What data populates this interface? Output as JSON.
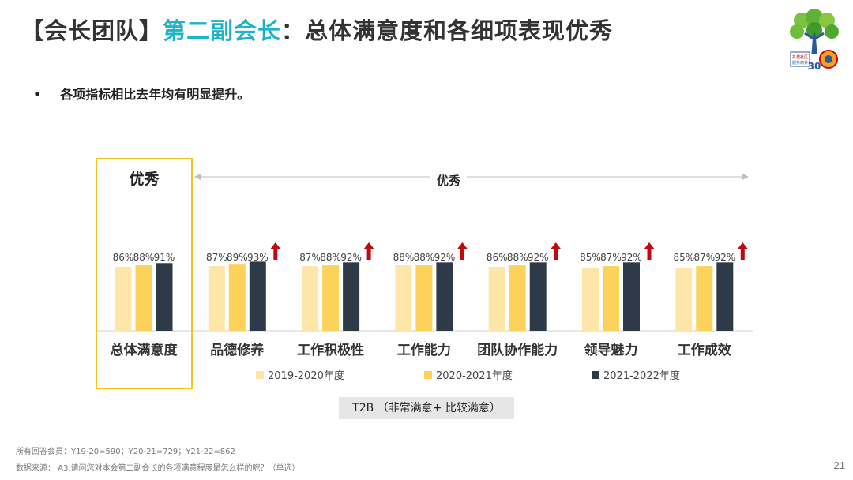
{
  "title": {
    "prefix": "【会长团队】",
    "accent": "第二副会长",
    "rest": "：总体满意度和各细项表现优秀"
  },
  "bullet": "各项指标相比去年均有明显提升。",
  "highlight_label": "优秀",
  "arrow_label": "优秀",
  "t2b_label": "T2B （非常满意+ 比较满意）",
  "footnote_1": "所有回答会员：Y19-20=590；Y20-21=729；Y21-22=862",
  "footnote_2": "数据来源：   A3.请问您对本会第二副会长的各项满意程度是怎么样的呢？（单选）",
  "page_number": "21",
  "colors": {
    "s1": "#fde6a8",
    "s2": "#fcd25a",
    "s3": "#2f3a48",
    "up_arrow": "#c0080e",
    "accent": "#1fb3c8",
    "highlight": "#f5c518"
  },
  "chart_data": {
    "type": "bar",
    "categories": [
      "总体满意度",
      "品德修养",
      "工作积极性",
      "工作能力",
      "团队协作能力",
      "领导魅力",
      "工作成效"
    ],
    "series": [
      {
        "name": "2019-2020年度",
        "values": [
          86,
          87,
          87,
          88,
          86,
          85,
          85
        ]
      },
      {
        "name": "2020-2021年度",
        "values": [
          88,
          89,
          88,
          88,
          88,
          87,
          87
        ]
      },
      {
        "name": "2021-2022年度",
        "values": [
          91,
          93,
          92,
          92,
          92,
          92,
          92
        ]
      }
    ],
    "value_suffix": "%",
    "up_arrows": [
      false,
      true,
      true,
      true,
      true,
      true,
      true
    ],
    "legend_position": "bottom"
  }
}
